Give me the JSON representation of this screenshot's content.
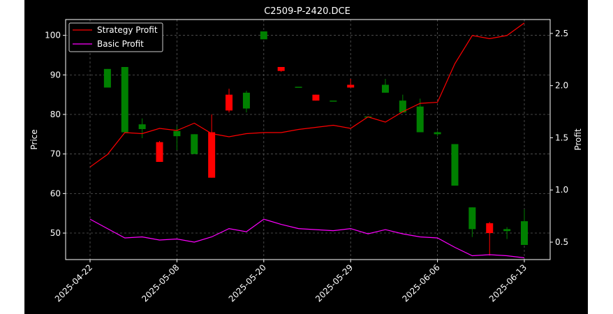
{
  "chart_data": {
    "type": "candlestick+line",
    "title": "C2509-P-2420.DCE",
    "xlabel": "",
    "ylabel": "Price",
    "y2label": "Profit",
    "ylim": [
      43.3,
      104.0
    ],
    "y2lim": [
      0.333,
      2.633
    ],
    "yticks": [
      50,
      60,
      70,
      80,
      90,
      100
    ],
    "y2ticks": [
      0.5,
      1.0,
      1.5,
      2.0,
      2.5
    ],
    "grid": true,
    "legend_position": "upper-left",
    "x_tick_labels": [
      {
        "index": 0,
        "label": "2025-04-22"
      },
      {
        "index": 5,
        "label": "2025-05-08"
      },
      {
        "index": 10,
        "label": "2025-05-20"
      },
      {
        "index": 15,
        "label": "2025-05-29"
      },
      {
        "index": 20,
        "label": "2025-06-06"
      },
      {
        "index": 25,
        "label": "2025-06-13"
      }
    ],
    "candles": [
      {
        "i": 1,
        "open": 86.8,
        "close": 91.5,
        "high": 91.5,
        "low": 86.8
      },
      {
        "i": 2,
        "open": 75.5,
        "close": 92.0,
        "high": 92.0,
        "low": 75.5
      },
      {
        "i": 3,
        "open": 76.3,
        "close": 77.5,
        "high": 79.0,
        "low": 74.0
      },
      {
        "i": 4,
        "open": 73.0,
        "close": 68.0,
        "high": 73.3,
        "low": 68.0
      },
      {
        "i": 5,
        "open": 74.5,
        "close": 75.8,
        "high": 77.0,
        "low": 71.0
      },
      {
        "i": 6,
        "open": 70.0,
        "close": 75.0,
        "high": 75.0,
        "low": 70.0
      },
      {
        "i": 7,
        "open": 75.5,
        "close": 64.0,
        "high": 80.0,
        "low": 64.0
      },
      {
        "i": 8,
        "open": 85.0,
        "close": 81.0,
        "high": 86.5,
        "low": 80.5
      },
      {
        "i": 9,
        "open": 81.5,
        "close": 85.5,
        "high": 86.0,
        "low": 80.5
      },
      {
        "i": 10,
        "open": 99.0,
        "close": 101.0,
        "high": 101.0,
        "low": 99.0
      },
      {
        "i": 11,
        "open": 92.0,
        "close": 91.0,
        "high": 92.0,
        "low": 90.8
      },
      {
        "i": 12,
        "open": 87.0,
        "close": 87.0,
        "high": 87.0,
        "low": 87.0
      },
      {
        "i": 13,
        "open": 85.0,
        "close": 83.5,
        "high": 85.0,
        "low": 83.5
      },
      {
        "i": 14,
        "open": 83.5,
        "close": 83.5,
        "high": 83.5,
        "low": 83.5
      },
      {
        "i": 15,
        "open": 87.5,
        "close": 86.8,
        "high": 89.0,
        "low": 86.8
      },
      {
        "i": 16,
        "open": 79.5,
        "close": 79.5,
        "high": 79.5,
        "low": 79.5
      },
      {
        "i": 17,
        "open": 85.5,
        "close": 87.5,
        "high": 89.0,
        "low": 85.5
      },
      {
        "i": 18,
        "open": 80.5,
        "close": 83.5,
        "high": 85.0,
        "low": 80.5
      },
      {
        "i": 19,
        "open": 75.5,
        "close": 82.0,
        "high": 84.0,
        "low": 75.5
      },
      {
        "i": 20,
        "open": 75.0,
        "close": 75.5,
        "high": 75.8,
        "low": 74.5
      },
      {
        "i": 21,
        "open": 62.0,
        "close": 72.5,
        "high": 72.5,
        "low": 62.0
      },
      {
        "i": 22,
        "open": 51.0,
        "close": 56.5,
        "high": 56.5,
        "low": 49.0
      },
      {
        "i": 23,
        "open": 52.5,
        "close": 50.0,
        "high": 52.8,
        "low": 44.3
      },
      {
        "i": 24,
        "open": 50.5,
        "close": 51.0,
        "high": 51.5,
        "low": 48.5
      },
      {
        "i": 25,
        "open": 47.0,
        "close": 53.0,
        "high": 56.0,
        "low": 47.0
      }
    ],
    "series": [
      {
        "name": "Strategy Profit",
        "color": "#ff0000",
        "axis": "right",
        "values": [
          1.22,
          1.34,
          1.55,
          1.54,
          1.59,
          1.57,
          1.64,
          1.54,
          1.51,
          1.54,
          1.55,
          1.55,
          1.58,
          1.6,
          1.62,
          1.59,
          1.7,
          1.65,
          1.75,
          1.83,
          1.84,
          2.21,
          2.48,
          2.45,
          2.48,
          2.6
        ]
      },
      {
        "name": "Basic Profit",
        "color": "#ff00ff",
        "axis": "right",
        "values": [
          0.72,
          0.63,
          0.54,
          0.55,
          0.52,
          0.53,
          0.5,
          0.55,
          0.63,
          0.6,
          0.72,
          0.67,
          0.63,
          0.62,
          0.61,
          0.63,
          0.58,
          0.62,
          0.58,
          0.55,
          0.54,
          0.45,
          0.37,
          0.38,
          0.37,
          0.35
        ]
      }
    ],
    "candle_up_color": "#008000",
    "candle_down_color": "#ff0000"
  }
}
